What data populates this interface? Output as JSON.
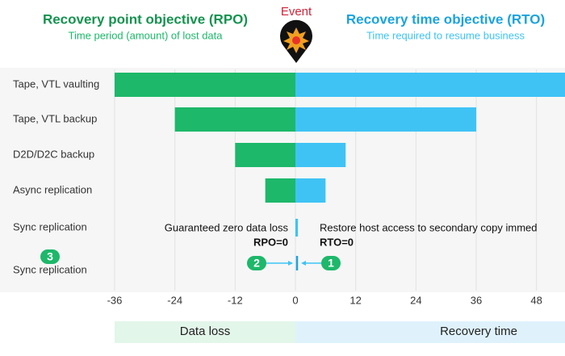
{
  "chart_data": {
    "type": "diverging-bar",
    "event": "Event",
    "categories": [
      "Tape, VTL vaulting",
      "Tape, VTL backup",
      "D2D/D2C backup",
      "Async replication",
      "Sync replication",
      "Sync replication"
    ],
    "series": [
      {
        "name": "Recovery point objective (RPO)",
        "subtitle": "Time period (amount) of lost data",
        "color": "#1db86a",
        "values": [
          -36,
          -24,
          -12,
          -6,
          0,
          0
        ]
      },
      {
        "name": "Recovery time objective (RTO)",
        "subtitle": "Time required to resume business",
        "color": "#3fc3f5",
        "values": [
          54,
          36,
          10,
          6,
          0.5,
          0
        ]
      }
    ],
    "xlim": [
      -36,
      54
    ],
    "xticks": [
      -36,
      -24,
      -12,
      0,
      12,
      24,
      36,
      48
    ],
    "axis_labels": [
      "Data loss",
      "Recovery time"
    ],
    "annotations": {
      "rpo_note": "Guaranteed zero data loss",
      "rpo_value": "RPO=0",
      "rto_note": "Restore host access to secondary copy immed",
      "rto_value": "RTO=0",
      "badges": [
        "1",
        "2",
        "3"
      ]
    },
    "grid": true
  }
}
